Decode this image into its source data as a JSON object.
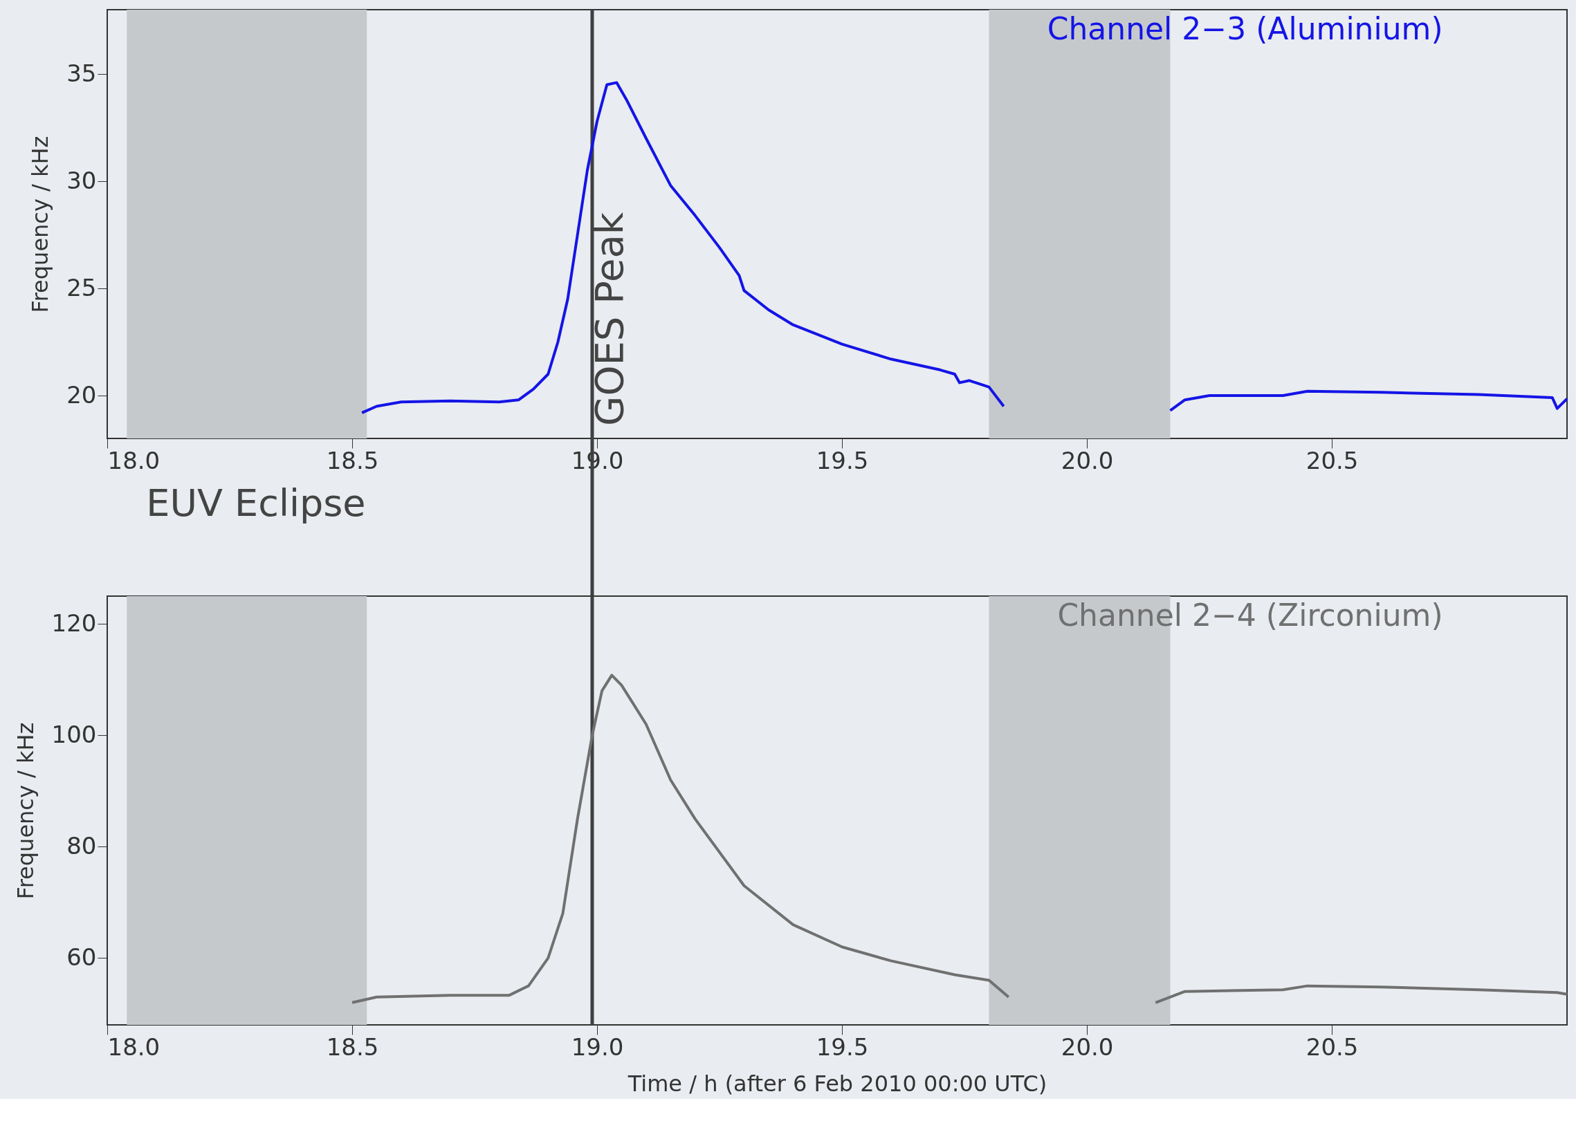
{
  "chart_data": [
    {
      "type": "line",
      "xlim": [
        18.0,
        20.98
      ],
      "ylim": [
        18,
        38
      ],
      "xticks": [
        {
          "value": 18.0,
          "label": "18.0"
        },
        {
          "value": 18.5,
          "label": "18.5"
        },
        {
          "value": 19.0,
          "label": "19.0"
        },
        {
          "value": 19.5,
          "label": "19.5"
        },
        {
          "value": 20.0,
          "label": "20.0"
        },
        {
          "value": 20.5,
          "label": "20.5"
        }
      ],
      "yticks": [
        20,
        25,
        30,
        35
      ],
      "ylabel": "Frequency / kHz",
      "grid": false,
      "marker": "none",
      "line_style": "solid",
      "bands": [
        {
          "axis": "x",
          "from": 18.04,
          "to": 18.53,
          "color": "#c6c9cc"
        },
        {
          "axis": "x",
          "from": 19.8,
          "to": 20.17,
          "color": "#c6c9cc"
        }
      ],
      "ref_lines": [
        {
          "axis": "x",
          "value": 18.99,
          "label": "GOES Peak",
          "color": "#404040"
        }
      ],
      "x": [
        18.52,
        18.55,
        18.6,
        18.7,
        18.8,
        18.84,
        18.87,
        18.9,
        18.92,
        18.94,
        18.96,
        18.98,
        19.0,
        19.02,
        19.04,
        19.06,
        19.1,
        19.15,
        19.2,
        19.25,
        19.29,
        19.3,
        19.35,
        19.4,
        19.5,
        19.6,
        19.7,
        19.73,
        19.74,
        19.76,
        19.8,
        19.83,
        20.0,
        20.17,
        20.2,
        20.25,
        20.4,
        20.45,
        20.6,
        20.8,
        20.95,
        20.96,
        20.98
      ],
      "series": [
        {
          "name": "Channel 2−3 (Aluminium)",
          "color": "#1414e6",
          "values": [
            19.2,
            19.5,
            19.7,
            19.75,
            19.7,
            19.8,
            20.3,
            21.0,
            22.5,
            24.5,
            27.5,
            30.5,
            32.8,
            34.5,
            34.6,
            33.8,
            32.0,
            29.8,
            28.4,
            26.9,
            25.6,
            24.9,
            24.0,
            23.3,
            22.4,
            21.7,
            21.2,
            21.0,
            20.6,
            20.7,
            20.4,
            19.5,
            null,
            19.3,
            19.8,
            20.0,
            20.0,
            20.2,
            20.15,
            20.05,
            19.9,
            19.4,
            19.85
          ]
        }
      ]
    },
    {
      "type": "line",
      "xlim": [
        18.0,
        20.98
      ],
      "ylim": [
        48,
        125
      ],
      "xticks": [
        {
          "value": 18.0,
          "label": "18.0"
        },
        {
          "value": 18.5,
          "label": "18.5"
        },
        {
          "value": 19.0,
          "label": "19.0"
        },
        {
          "value": 19.5,
          "label": "19.5"
        },
        {
          "value": 20.0,
          "label": "20.0"
        },
        {
          "value": 20.5,
          "label": "20.5"
        }
      ],
      "yticks": [
        60,
        80,
        100,
        120
      ],
      "ylabel": "Frequency / kHz",
      "xlabel": "Time / h (after 6 Feb 2010  00:00 UTC)",
      "grid": false,
      "marker": "none",
      "line_style": "solid",
      "bands": [
        {
          "axis": "x",
          "from": 18.04,
          "to": 18.53,
          "label": "EUV Eclipse",
          "color": "#c6c9cc"
        },
        {
          "axis": "x",
          "from": 19.8,
          "to": 20.17,
          "color": "#c6c9cc"
        }
      ],
      "ref_lines": [
        {
          "axis": "x",
          "value": 18.99,
          "color": "#404040"
        }
      ],
      "x": [
        18.5,
        18.55,
        18.7,
        18.82,
        18.86,
        18.9,
        18.93,
        18.96,
        18.99,
        19.01,
        19.03,
        19.05,
        19.1,
        19.15,
        19.2,
        19.3,
        19.4,
        19.5,
        19.6,
        19.73,
        19.8,
        19.84,
        20.0,
        20.14,
        20.2,
        20.4,
        20.45,
        20.6,
        20.8,
        20.96,
        20.98
      ],
      "series": [
        {
          "name": "Channel 2−4 (Zirconium)",
          "color": "#707070",
          "values": [
            52.0,
            53.0,
            53.3,
            53.3,
            55,
            60,
            68,
            85,
            100,
            108,
            110.8,
            109,
            102,
            92,
            85,
            73,
            66,
            62,
            59.5,
            57,
            56,
            53,
            null,
            52,
            54,
            54.3,
            55,
            54.8,
            54.3,
            53.8,
            53.5
          ]
        }
      ]
    }
  ]
}
